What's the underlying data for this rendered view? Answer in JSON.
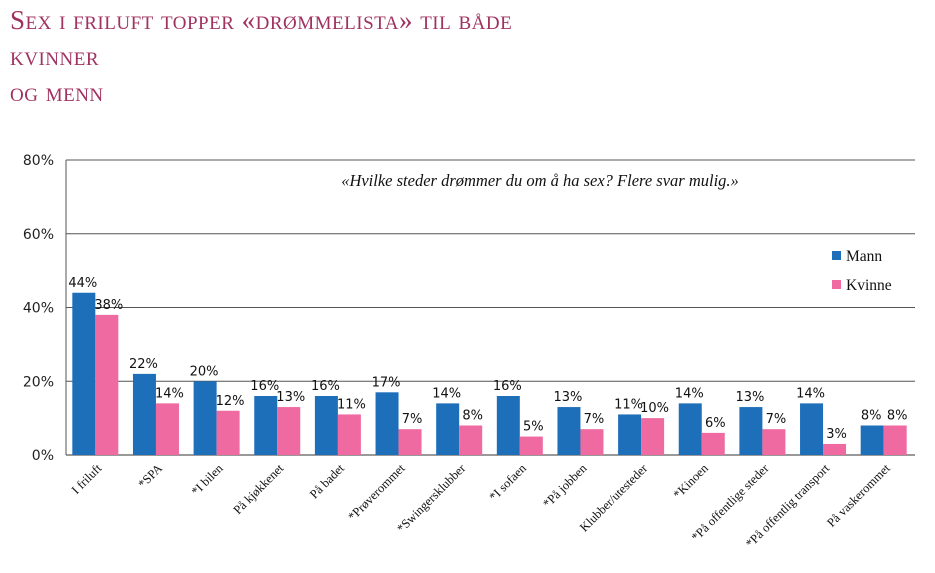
{
  "title": {
    "line1": "Sex i friluft topper «drømmelista» til både",
    "line2": "kvinner",
    "line3": "og menn"
  },
  "chart_data": {
    "type": "bar",
    "subtitle": "«Hvilke steder drømmer du om å ha sex? Flere svar mulig.»",
    "categories": [
      "I friluft",
      "*SPA",
      "*I bilen",
      "På kjøkkenet",
      "På badet",
      "*Prøverommet",
      "*Swingersklubber",
      "*I sofaen",
      "*På jobben",
      "Klubber/utesteder",
      "*Kinoen",
      "*På offentlige steder",
      "*På offentlig transport",
      "På vaskerommet"
    ],
    "series": [
      {
        "name": "Mann",
        "color": "#1e6fba",
        "values": [
          44,
          22,
          20,
          16,
          16,
          17,
          14,
          16,
          13,
          11,
          14,
          13,
          14,
          8
        ]
      },
      {
        "name": "Kvinne",
        "color": "#ee6aa0",
        "values": [
          38,
          14,
          12,
          13,
          11,
          7,
          8,
          5,
          7,
          10,
          6,
          7,
          3,
          8
        ]
      }
    ],
    "y_ticks": [
      "0%",
      "20%",
      "40%",
      "60%",
      "80%"
    ],
    "ylim": [
      0,
      80
    ],
    "value_suffix": "%",
    "grid": true,
    "legend_position": "right"
  }
}
